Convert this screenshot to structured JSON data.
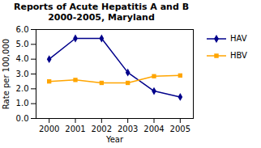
{
  "chart_data": {
    "type": "line",
    "title": "Reports of Acute Hepatitis A and B\n2000-2005, Maryland",
    "x": [
      2000,
      2001,
      2002,
      2003,
      2004,
      2005
    ],
    "series": [
      {
        "name": "HAV",
        "color": "#00008B",
        "marker": "diamond",
        "values": [
          4.0,
          5.4,
          5.4,
          3.1,
          1.85,
          1.45
        ]
      },
      {
        "name": "HBV",
        "color": "#FFA500",
        "marker": "square",
        "values": [
          2.5,
          2.6,
          2.4,
          2.4,
          2.85,
          2.9
        ]
      }
    ],
    "xlabel": "Year",
    "ylabel": "Rate per 100,000",
    "xlim": [
      1999.5,
      2005.5
    ],
    "xticks": [
      2000,
      2001,
      2002,
      2003,
      2004,
      2005
    ],
    "ylim": [
      0,
      6
    ],
    "yticks": [
      0,
      1,
      2,
      3,
      4,
      5,
      6
    ],
    "grid": false,
    "legend": "right"
  }
}
